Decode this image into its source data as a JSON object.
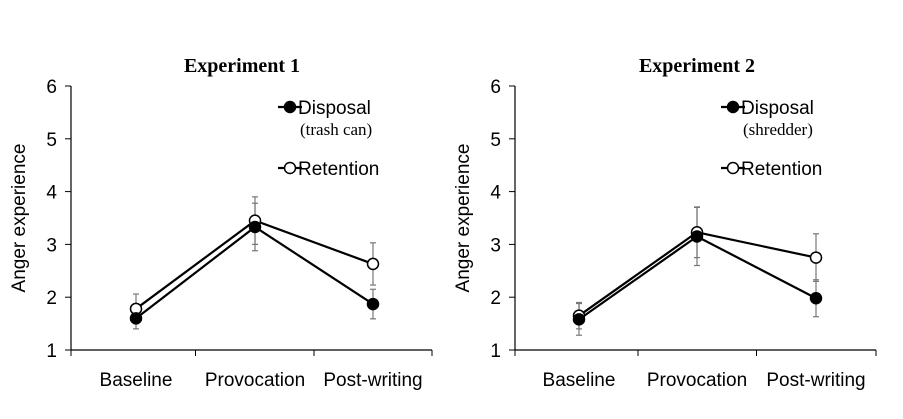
{
  "chart_data": [
    {
      "type": "line",
      "title": "Experiment 1",
      "ylabel": "Anger experience",
      "xlabel": "",
      "categories": [
        "Baseline",
        "Provocation",
        "Post-writing"
      ],
      "ylim": [
        1,
        6
      ],
      "yticks": [
        "1",
        "2",
        "3",
        "4",
        "5",
        "6"
      ],
      "grid": false,
      "legend_position": "top-right",
      "series": [
        {
          "name": "Disposal",
          "name_note": "(trash can)",
          "marker": "filled",
          "values": [
            1.6,
            3.33,
            1.87
          ],
          "errors": [
            0.2,
            0.45,
            0.28
          ]
        },
        {
          "name": "Retention",
          "marker": "open",
          "values": [
            1.78,
            3.45,
            2.63
          ],
          "errors": [
            0.28,
            0.45,
            0.4
          ]
        }
      ]
    },
    {
      "type": "line",
      "title": "Experiment 2",
      "ylabel": "Anger experience",
      "xlabel": "",
      "categories": [
        "Baseline",
        "Provocation",
        "Post-writing"
      ],
      "ylim": [
        1,
        6
      ],
      "yticks": [
        "1",
        "2",
        "3",
        "4",
        "5",
        "6"
      ],
      "grid": false,
      "legend_position": "top-right",
      "series": [
        {
          "name": "Disposal",
          "name_note": "(shredder)",
          "marker": "filled",
          "values": [
            1.58,
            3.15,
            1.98
          ],
          "errors": [
            0.3,
            0.55,
            0.35
          ]
        },
        {
          "name": "Retention",
          "marker": "open",
          "values": [
            1.65,
            3.23,
            2.75
          ],
          "errors": [
            0.25,
            0.48,
            0.45
          ]
        }
      ]
    }
  ]
}
